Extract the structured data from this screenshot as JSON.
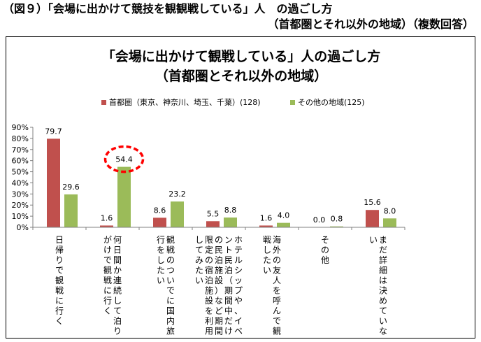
{
  "figure_heading": {
    "line1": "（図９）「会場に出かけて競技を観観戦している」人　の過ごし方",
    "line2": "（首都圏とそれ以外の地域）（複数回答）"
  },
  "chart_data": {
    "type": "bar",
    "title": "「会場に出かけて観戦している」人の過ごし方",
    "subtitle": "（首都圏とそれ以外の地域）",
    "categories": [
      "日帰りで観戦に行く",
      "何日間か連続して泊りがけで観戦に行く",
      "観戦のついでに国内旅行をしたい",
      "ホテルシップや、イベント民泊（期間中だけの民泊施設）など期間限定の宿泊施設を利用してみたい",
      "海外の友人を呼んで観戦したい",
      "その他",
      "まだ詳細は決めていない"
    ],
    "series": [
      {
        "name": "首都圏（東京、神奈川、埼玉、千葉）(128)",
        "color": "#C0504D",
        "values": [
          79.7,
          1.6,
          8.6,
          5.5,
          1.6,
          0.0,
          15.6
        ]
      },
      {
        "name": "その他の地域(125)",
        "color": "#9BBB59",
        "values": [
          29.6,
          54.4,
          23.2,
          8.8,
          4.0,
          0.8,
          8.0
        ]
      }
    ],
    "value_labels": [
      [
        "79.7",
        "1.6",
        "8.6",
        "5.5",
        "1.6",
        "0.0",
        "15.6"
      ],
      [
        "29.6",
        "54.4",
        "23.2",
        "8.8",
        "4.0",
        "0.8",
        "8.0"
      ]
    ],
    "ylim": [
      0,
      90
    ],
    "yticks": [
      "0%",
      "10%",
      "20%",
      "30%",
      "40%",
      "50%",
      "60%",
      "70%",
      "80%",
      "90%"
    ],
    "grid": false,
    "legend_position": "top",
    "highlight": {
      "series": 1,
      "category": 1,
      "style": "red-dashed-ellipse"
    }
  }
}
